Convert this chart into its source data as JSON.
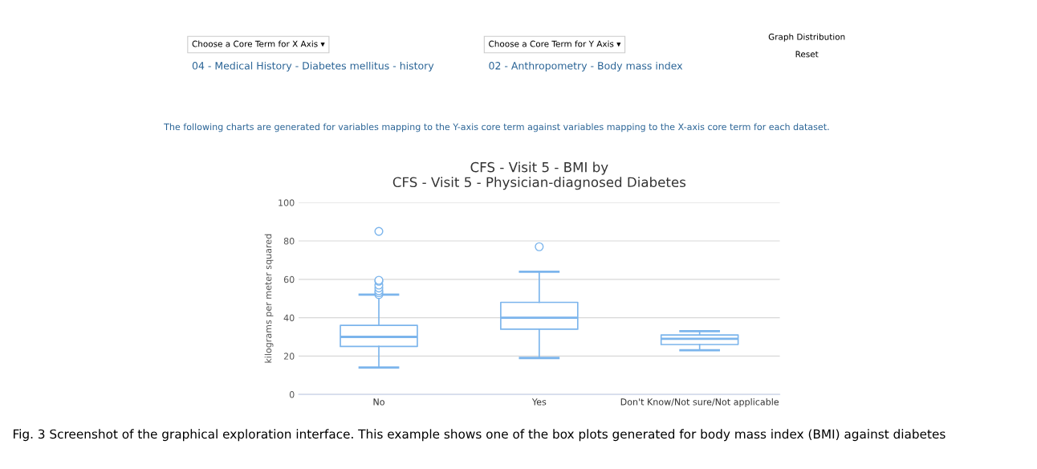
{
  "chart_data": {
    "type": "box",
    "title": "CFS - Visit 5 - BMI by\nCFS - Visit 5 - Physician-diagnosed Diabetes",
    "ylabel": "kilograms per meter squared",
    "categories": [
      "No",
      "Yes",
      "Don't Know/Not sure/Not applicable"
    ],
    "boxes": [
      {
        "low": 14,
        "q1": 25,
        "median": 30,
        "q3": 36,
        "high": 52,
        "outliers": [
          52,
          53,
          54,
          55.5,
          57,
          59,
          59.5,
          85
        ]
      },
      {
        "low": 19,
        "q1": 34,
        "median": 40,
        "q3": 48,
        "high": 64,
        "outliers": [
          77
        ]
      },
      {
        "low": 23,
        "q1": 26,
        "median": 29,
        "q3": 31,
        "high": 33
      }
    ],
    "color": "#7cb5ec",
    "ylim": [
      0,
      100
    ],
    "yticks": [
      0,
      20,
      40,
      60,
      80,
      100
    ],
    "grid": "y",
    "annotations": [
      "Choose a Core Term for X Axis ▾",
      "04 - Medical History - Diabetes mellitus - history",
      "Choose a Core Term for Y Axis ▾",
      "02 - Anthropometry - Body mass index",
      "Graph Distribution",
      "Reset",
      "The following charts are generated for variables mapping to the Y-axis core term against variables mapping to the X-axis core term for each dataset.",
      "Fig. 3 Screenshot of the graphical exploration interface. This example shows one of the box plots generated for body mass index (BMI) against diabetes"
    ]
  }
}
